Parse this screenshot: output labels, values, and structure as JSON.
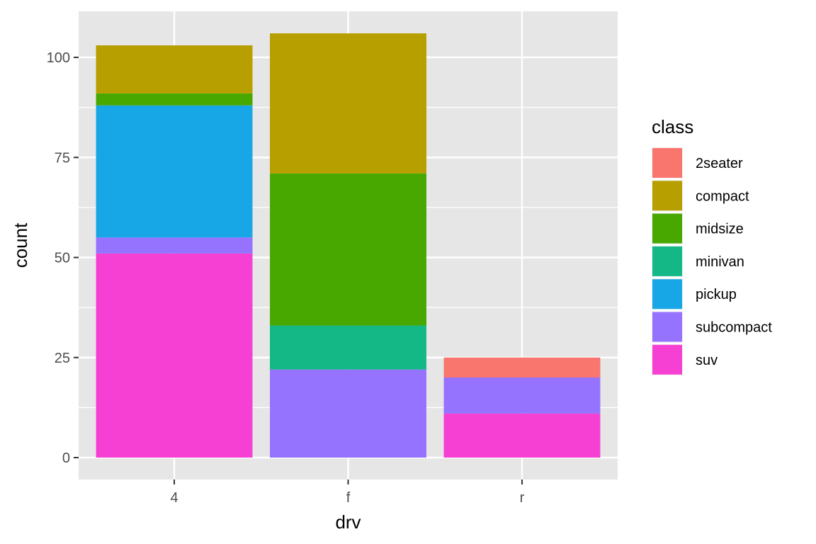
{
  "chart_data": {
    "type": "bar",
    "stacked": true,
    "categories": [
      "4",
      "f",
      "r"
    ],
    "xlabel": "drv",
    "ylabel": "count",
    "ylim": [
      0,
      108.5
    ],
    "yticks": [
      0,
      25,
      50,
      75,
      100
    ],
    "grid": true,
    "legend": {
      "title": "class",
      "placement": "right"
    },
    "series": [
      {
        "name": "2seater",
        "color": "#F8766D",
        "values": [
          0,
          0,
          5
        ]
      },
      {
        "name": "compact",
        "color": "#B79F00",
        "values": [
          12,
          35,
          0
        ]
      },
      {
        "name": "midsize",
        "color": "#48A800",
        "values": [
          3,
          38,
          0
        ]
      },
      {
        "name": "minivan",
        "color": "#14B886",
        "values": [
          0,
          11,
          0
        ]
      },
      {
        "name": "pickup",
        "color": "#18A7E6",
        "values": [
          33,
          0,
          0
        ]
      },
      {
        "name": "subcompact",
        "color": "#9673FF",
        "values": [
          4,
          22,
          9
        ]
      },
      {
        "name": "suv",
        "color": "#F640D3",
        "values": [
          51,
          0,
          11
        ]
      }
    ]
  },
  "theme": {
    "panel_background": "#E6E6E6",
    "grid_color": "#FFFFFF"
  }
}
